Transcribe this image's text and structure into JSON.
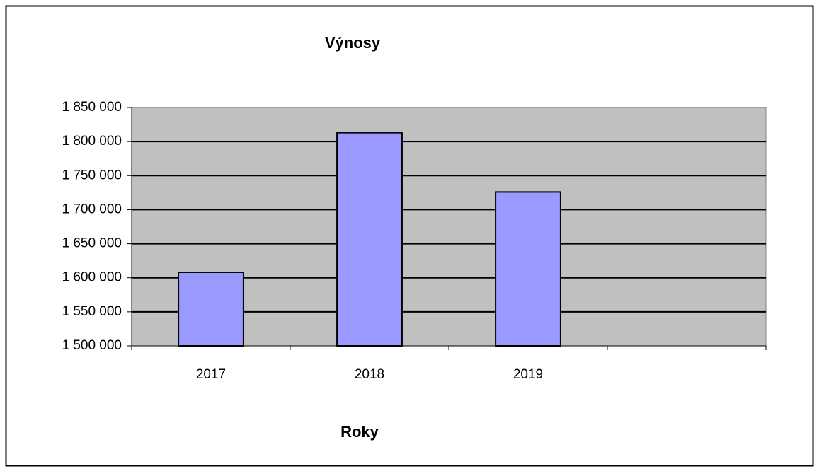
{
  "chart_data": {
    "type": "bar",
    "title": "Výnosy",
    "x_label": "Roky",
    "categories": [
      "2017",
      "2018",
      "2019",
      null
    ],
    "values": [
      1608000,
      1813000,
      1726000,
      null
    ],
    "color": "#9999ff",
    "ylim": [
      1500000,
      1850000
    ],
    "yticks": [
      {
        "value": 1500000,
        "label": "1 500 000"
      },
      {
        "value": 1550000,
        "label": "1 550 000"
      },
      {
        "value": 1600000,
        "label": "1 600 000"
      },
      {
        "value": 1650000,
        "label": "1 650 000"
      },
      {
        "value": 1700000,
        "label": "1 700 000"
      },
      {
        "value": 1750000,
        "label": "1 750 000"
      },
      {
        "value": 1800000,
        "label": "1 800 000"
      },
      {
        "value": 1850000,
        "label": "1 850 000"
      }
    ],
    "grid": true
  }
}
